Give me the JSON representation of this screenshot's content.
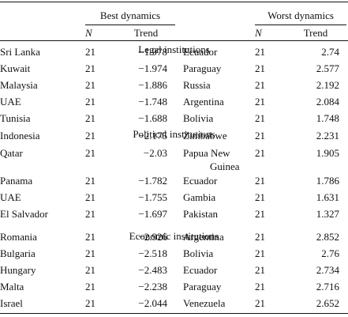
{
  "header": {
    "best_group": "Best dynamics",
    "worst_group": "Worst dynamics",
    "n_label": "N",
    "trend_label": "Trend"
  },
  "sections": [
    {
      "title": "Legal institutions",
      "rows": [
        {
          "best_country": "Sri Lanka",
          "best_n": "21",
          "best_trend": "−1.978",
          "worst_country": "Ecuador",
          "worst_n": "21",
          "worst_trend": "2.74"
        },
        {
          "best_country": "Kuwait",
          "best_n": "21",
          "best_trend": "−1.974",
          "worst_country": "Paraguay",
          "worst_n": "21",
          "worst_trend": "2.577"
        },
        {
          "best_country": "Malaysia",
          "best_n": "21",
          "best_trend": "−1.886",
          "worst_country": "Russia",
          "worst_n": "21",
          "worst_trend": "2.192"
        },
        {
          "best_country": "UAE",
          "best_n": "21",
          "best_trend": "−1.748",
          "worst_country": "Argentina",
          "worst_n": "21",
          "worst_trend": "2.084"
        },
        {
          "best_country": "Tunisia",
          "best_n": "21",
          "best_trend": "−1.688",
          "worst_country": "Bolivia",
          "worst_n": "21",
          "worst_trend": "1.748"
        }
      ]
    },
    {
      "title": "Political institutions",
      "rows": [
        {
          "best_country": "Indonesia",
          "best_n": "21",
          "best_trend": "−2.175",
          "worst_country": "Zimbabwe",
          "worst_n": "21",
          "worst_trend": "2.231"
        },
        {
          "best_country": "Qatar",
          "best_n": "21",
          "best_trend": "−2.03",
          "worst_country": "Papua New",
          "worst_country_2": "Guinea",
          "worst_n": "21",
          "worst_trend": "1.905"
        },
        {
          "best_country": "Panama",
          "best_n": "21",
          "best_trend": "−1.782",
          "worst_country": "Ecuador",
          "worst_n": "21",
          "worst_trend": "1.786"
        },
        {
          "best_country": "UAE",
          "best_n": "21",
          "best_trend": "−1.755",
          "worst_country": "Gambia",
          "worst_n": "21",
          "worst_trend": "1.631"
        },
        {
          "best_country": "El Salvador",
          "best_n": "21",
          "best_trend": "−1.697",
          "worst_country": "Pakistan",
          "worst_n": "21",
          "worst_trend": "1.327"
        }
      ]
    },
    {
      "title": "Economic institutions",
      "rows": [
        {
          "best_country": "Romania",
          "best_n": "21",
          "best_trend": "−2.926",
          "worst_country": "Argentina",
          "worst_n": "21",
          "worst_trend": "2.852"
        },
        {
          "best_country": "Bulgaria",
          "best_n": "21",
          "best_trend": "−2.518",
          "worst_country": "Bolivia",
          "worst_n": "21",
          "worst_trend": "2.76"
        },
        {
          "best_country": "Hungary",
          "best_n": "21",
          "best_trend": "−2.483",
          "worst_country": "Ecuador",
          "worst_n": "21",
          "worst_trend": "2.734"
        },
        {
          "best_country": "Malta",
          "best_n": "21",
          "best_trend": "−2.238",
          "worst_country": "Paraguay",
          "worst_n": "21",
          "worst_trend": "2.716"
        },
        {
          "best_country": "Israel",
          "best_n": "21",
          "best_trend": "−2.044",
          "worst_country": "Venezuela",
          "worst_n": "21",
          "worst_trend": "2.652"
        }
      ]
    }
  ]
}
